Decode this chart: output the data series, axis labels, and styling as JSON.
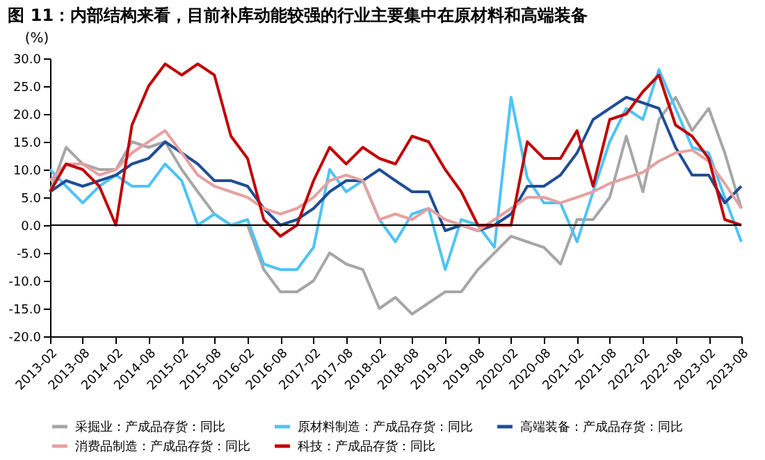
{
  "chart_data": {
    "type": "line",
    "title": "图 11：内部结构来看，目前补库动能较强的行业主要集中在原材料和高端装备",
    "ylabel": "(%)",
    "x": [
      "2013-02",
      "2013-05",
      "2013-08",
      "2013-11",
      "2014-02",
      "2014-05",
      "2014-08",
      "2014-11",
      "2015-02",
      "2015-05",
      "2015-08",
      "2015-11",
      "2016-02",
      "2016-05",
      "2016-08",
      "2016-11",
      "2017-02",
      "2017-05",
      "2017-08",
      "2017-11",
      "2018-02",
      "2018-05",
      "2018-08",
      "2018-11",
      "2019-02",
      "2019-05",
      "2019-08",
      "2019-11",
      "2020-02",
      "2020-05",
      "2020-08",
      "2020-11",
      "2021-02",
      "2021-05",
      "2021-08",
      "2021-11",
      "2022-02",
      "2022-05",
      "2022-08",
      "2022-11",
      "2023-02",
      "2023-05",
      "2023-08"
    ],
    "series": [
      {
        "name": "采掘业：产成品存货：同比",
        "color": "#a6a6a6",
        "values": [
          6,
          14,
          11,
          10,
          10,
          15,
          14,
          15,
          10,
          6,
          2,
          0,
          0,
          -8,
          -12,
          -12,
          -10,
          -5,
          -7,
          -8,
          -15,
          -13,
          -16,
          -14,
          -12,
          -12,
          -8,
          -5,
          -2,
          -3,
          -4,
          -7,
          1,
          1,
          5,
          16,
          6,
          19,
          23,
          17,
          21,
          13,
          3
        ]
      },
      {
        "name": "原材料制造：产成品存货：同比",
        "color": "#4fc3f7",
        "values": [
          10,
          7,
          4,
          7,
          9,
          7,
          7,
          11,
          8,
          0,
          2,
          0,
          1,
          -7,
          -8,
          -8,
          -4,
          10,
          6,
          8,
          1,
          -3,
          2,
          3,
          -8,
          1,
          0,
          -4,
          23,
          8.5,
          4,
          4,
          -3,
          6,
          15,
          21,
          19,
          28,
          21,
          14,
          13,
          5,
          -3
        ]
      },
      {
        "name": "高端装备：产成品存货：同比",
        "color": "#1f4e96",
        "values": [
          6,
          8,
          7,
          8,
          9,
          11,
          12,
          15,
          13,
          11,
          8,
          8,
          7,
          3,
          0,
          1,
          3,
          6,
          8,
          8,
          10,
          8,
          6,
          6,
          -1,
          0,
          -1,
          0,
          2,
          7,
          7,
          9,
          13,
          19,
          21,
          23,
          22,
          21,
          14,
          9,
          9,
          4,
          7
        ]
      },
      {
        "name": "消费品制造：产成品存货：同比",
        "color": "#e6a0a0",
        "values": [
          8,
          11,
          11,
          9,
          10,
          13,
          15,
          17,
          13,
          9,
          7,
          6,
          5,
          3,
          2,
          3,
          5,
          8,
          9,
          8,
          1,
          2,
          1,
          3,
          1,
          0,
          -1,
          1,
          3,
          5,
          5,
          4,
          5,
          6,
          7.5,
          8.5,
          9.5,
          11.5,
          13,
          13.5,
          11.5,
          7.5,
          3
        ]
      },
      {
        "name": "科技：产成品存货：同比",
        "color": "#c00000",
        "values": [
          6,
          11,
          10,
          7,
          0,
          18,
          25,
          29,
          27,
          29,
          27,
          16,
          12,
          1,
          -2,
          0,
          8,
          14,
          11,
          14,
          12,
          11,
          16,
          15,
          10,
          6,
          0,
          0,
          0,
          15,
          12,
          12,
          17,
          7,
          19,
          20,
          24,
          27,
          18,
          16,
          12,
          1,
          0
        ]
      }
    ],
    "xlim": [
      "2013-02",
      "2023-08"
    ],
    "xticks": [
      "2013-02",
      "2013-08",
      "2014-02",
      "2014-08",
      "2015-02",
      "2015-08",
      "2016-02",
      "2016-08",
      "2017-02",
      "2017-08",
      "2018-02",
      "2018-08",
      "2019-02",
      "2019-08",
      "2020-02",
      "2020-08",
      "2021-02",
      "2021-08",
      "2022-02",
      "2022-08",
      "2023-02",
      "2023-08"
    ],
    "ylim": [
      -20,
      30
    ],
    "yticks": [
      {
        "value": -20,
        "label": "-20.0"
      },
      {
        "value": -15,
        "label": "-15.0"
      },
      {
        "value": -10,
        "label": "-10.0"
      },
      {
        "value": -5,
        "label": "-5.0"
      },
      {
        "value": 0,
        "label": "0.0"
      },
      {
        "value": 5,
        "label": "5.0"
      },
      {
        "value": 10,
        "label": "10.0"
      },
      {
        "value": 15,
        "label": "15.0"
      },
      {
        "value": 20,
        "label": "20.0"
      },
      {
        "value": 25,
        "label": "25.0"
      },
      {
        "value": 30,
        "label": "30.0"
      }
    ],
    "ref_lines": [
      {
        "axis": "y",
        "value": 0,
        "color": "#000000"
      }
    ],
    "grid": false,
    "legend": "bottom",
    "marker": "none",
    "line_style": "solid"
  }
}
